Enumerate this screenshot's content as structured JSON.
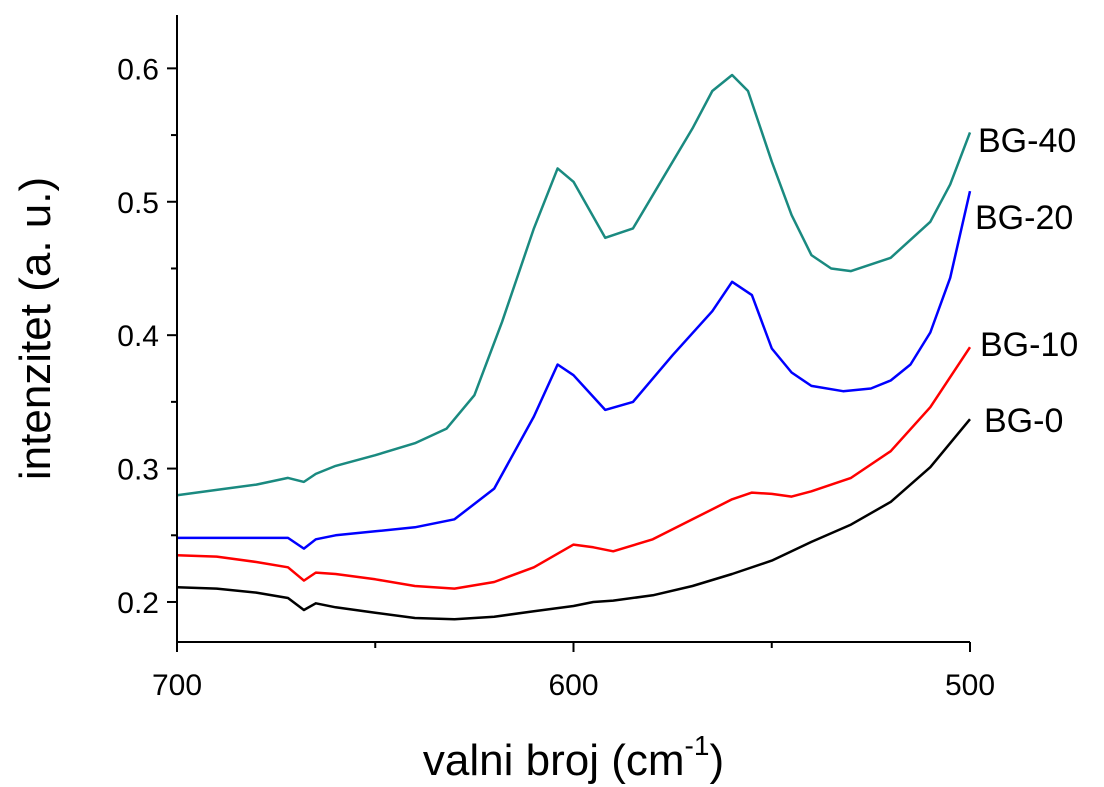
{
  "chart_data": {
    "type": "line",
    "xlabel": "valni broj (cm",
    "xlabel_sup": "-1",
    "xlabel_close": ")",
    "ylabel": "intenzitet (a. u.)",
    "xlim": [
      700,
      500
    ],
    "ylim": [
      0.17,
      0.64
    ],
    "x_reversed": true,
    "x_ticks": [
      700,
      600,
      500
    ],
    "x_tick_labels": [
      "700",
      "600",
      "500"
    ],
    "y_ticks": [
      0.2,
      0.3,
      0.4,
      0.5,
      0.6
    ],
    "y_tick_labels": [
      "0.2",
      "0.3",
      "0.4",
      "0.5",
      "0.6"
    ],
    "grid": false,
    "legend": "inline labels at right end of each series",
    "series": [
      {
        "name": "BG-0",
        "color": "#000000",
        "points": [
          [
            700,
            0.211
          ],
          [
            690,
            0.21
          ],
          [
            680,
            0.207
          ],
          [
            672,
            0.203
          ],
          [
            668,
            0.194
          ],
          [
            665,
            0.199
          ],
          [
            660,
            0.196
          ],
          [
            650,
            0.192
          ],
          [
            640,
            0.188
          ],
          [
            630,
            0.187
          ],
          [
            620,
            0.189
          ],
          [
            610,
            0.193
          ],
          [
            600,
            0.197
          ],
          [
            595,
            0.2
          ],
          [
            590,
            0.201
          ],
          [
            580,
            0.205
          ],
          [
            570,
            0.212
          ],
          [
            560,
            0.221
          ],
          [
            550,
            0.231
          ],
          [
            540,
            0.245
          ],
          [
            530,
            0.258
          ],
          [
            520,
            0.275
          ],
          [
            510,
            0.301
          ],
          [
            500,
            0.337
          ]
        ]
      },
      {
        "name": "BG-10",
        "color": "#ff0000",
        "points": [
          [
            700,
            0.235
          ],
          [
            690,
            0.234
          ],
          [
            680,
            0.23
          ],
          [
            672,
            0.226
          ],
          [
            668,
            0.216
          ],
          [
            665,
            0.222
          ],
          [
            660,
            0.221
          ],
          [
            650,
            0.217
          ],
          [
            640,
            0.212
          ],
          [
            630,
            0.21
          ],
          [
            620,
            0.215
          ],
          [
            610,
            0.226
          ],
          [
            600,
            0.243
          ],
          [
            595,
            0.241
          ],
          [
            590,
            0.238
          ],
          [
            580,
            0.247
          ],
          [
            570,
            0.262
          ],
          [
            560,
            0.277
          ],
          [
            555,
            0.282
          ],
          [
            550,
            0.281
          ],
          [
            545,
            0.279
          ],
          [
            540,
            0.283
          ],
          [
            530,
            0.293
          ],
          [
            520,
            0.313
          ],
          [
            510,
            0.346
          ],
          [
            500,
            0.391
          ]
        ]
      },
      {
        "name": "BG-20",
        "color": "#0000ff",
        "points": [
          [
            700,
            0.248
          ],
          [
            690,
            0.248
          ],
          [
            680,
            0.248
          ],
          [
            672,
            0.248
          ],
          [
            668,
            0.24
          ],
          [
            665,
            0.247
          ],
          [
            660,
            0.25
          ],
          [
            650,
            0.253
          ],
          [
            640,
            0.256
          ],
          [
            630,
            0.262
          ],
          [
            620,
            0.285
          ],
          [
            610,
            0.339
          ],
          [
            604,
            0.378
          ],
          [
            600,
            0.37
          ],
          [
            592,
            0.344
          ],
          [
            585,
            0.35
          ],
          [
            575,
            0.385
          ],
          [
            565,
            0.418
          ],
          [
            560,
            0.44
          ],
          [
            555,
            0.43
          ],
          [
            550,
            0.39
          ],
          [
            545,
            0.372
          ],
          [
            540,
            0.362
          ],
          [
            532,
            0.358
          ],
          [
            525,
            0.36
          ],
          [
            520,
            0.366
          ],
          [
            515,
            0.378
          ],
          [
            510,
            0.402
          ],
          [
            505,
            0.443
          ],
          [
            500,
            0.508
          ]
        ]
      },
      {
        "name": "BG-40",
        "color": "#1a8a80",
        "points": [
          [
            700,
            0.28
          ],
          [
            690,
            0.284
          ],
          [
            680,
            0.288
          ],
          [
            672,
            0.293
          ],
          [
            668,
            0.29
          ],
          [
            665,
            0.296
          ],
          [
            660,
            0.302
          ],
          [
            650,
            0.31
          ],
          [
            640,
            0.319
          ],
          [
            632,
            0.33
          ],
          [
            625,
            0.355
          ],
          [
            618,
            0.41
          ],
          [
            610,
            0.48
          ],
          [
            604,
            0.525
          ],
          [
            600,
            0.515
          ],
          [
            592,
            0.473
          ],
          [
            585,
            0.48
          ],
          [
            578,
            0.515
          ],
          [
            570,
            0.555
          ],
          [
            565,
            0.583
          ],
          [
            560,
            0.595
          ],
          [
            556,
            0.583
          ],
          [
            550,
            0.53
          ],
          [
            545,
            0.49
          ],
          [
            540,
            0.46
          ],
          [
            535,
            0.45
          ],
          [
            530,
            0.448
          ],
          [
            520,
            0.458
          ],
          [
            510,
            0.485
          ],
          [
            505,
            0.513
          ],
          [
            500,
            0.552
          ]
        ]
      }
    ]
  }
}
